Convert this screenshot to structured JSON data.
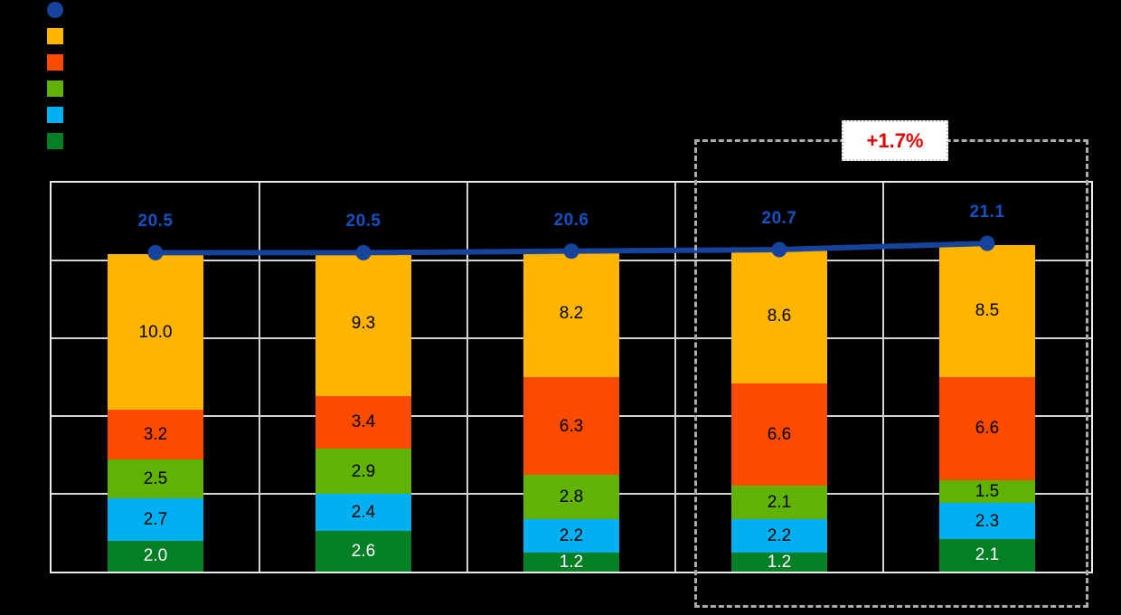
{
  "legend": {
    "items": [
      {
        "name": "total-line-marker",
        "shape": "circle",
        "color": "#16449C"
      },
      {
        "name": "series-yellow",
        "shape": "square",
        "color": "#FFB400"
      },
      {
        "name": "series-orange",
        "shape": "square",
        "color": "#FA4B00"
      },
      {
        "name": "series-light-green",
        "shape": "square",
        "color": "#60B204"
      },
      {
        "name": "series-cyan",
        "shape": "square",
        "color": "#00B0F0"
      },
      {
        "name": "series-dark-green",
        "shape": "square",
        "color": "#047F26"
      }
    ]
  },
  "annotation": {
    "label": "+1.7%",
    "text_color": "#E60000"
  },
  "chart_data": {
    "type": "bar",
    "variant": "stacked-columns-with-total-line",
    "n_categories": 5,
    "ylim": [
      0,
      25
    ],
    "grid_step": 5,
    "grid_color": "#D4D4D4",
    "border_color": "#ECECEC",
    "series": [
      {
        "name": "dark-green-bottom",
        "color": "#047F26",
        "text_color": "#FFFFFF",
        "values": [
          2.0,
          2.6,
          1.2,
          1.2,
          2.1
        ]
      },
      {
        "name": "cyan",
        "color": "#00B0F0",
        "text_color": "#000000",
        "values": [
          2.7,
          2.4,
          2.2,
          2.2,
          2.3
        ]
      },
      {
        "name": "light-green",
        "color": "#60B204",
        "text_color": "#000000",
        "values": [
          2.5,
          2.9,
          2.8,
          2.1,
          1.5
        ]
      },
      {
        "name": "orange",
        "color": "#FA4B00",
        "text_color": "#000000",
        "values": [
          3.2,
          3.4,
          6.3,
          6.6,
          6.6
        ]
      },
      {
        "name": "yellow",
        "color": "#FFB400",
        "text_color": "#000000",
        "values": [
          10.0,
          9.3,
          8.2,
          8.6,
          8.5
        ]
      }
    ],
    "line": {
      "name": "total",
      "color": "#16449C",
      "label_color": "#1452C4",
      "values": [
        20.5,
        20.5,
        20.6,
        20.7,
        21.1
      ]
    },
    "highlight": {
      "categories_covered": [
        4,
        5
      ],
      "annotation": "+1.7%"
    }
  }
}
